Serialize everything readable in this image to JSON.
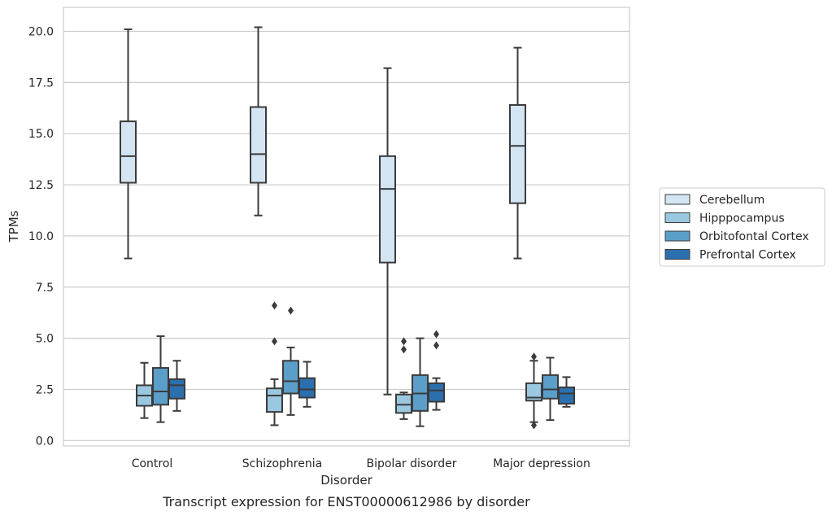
{
  "chart_data": {
    "type": "box",
    "title": "Transcript expression for ENST00000612986 by disorder",
    "xlabel": "Disorder",
    "ylabel": "TPMs",
    "ylim": [
      -0.2,
      21.2
    ],
    "yticks": [
      0.0,
      2.5,
      5.0,
      7.5,
      10.0,
      12.5,
      15.0,
      17.5,
      20.0
    ],
    "ytick_labels": [
      "0.0",
      "2.5",
      "5.0",
      "7.5",
      "10.0",
      "12.5",
      "15.0",
      "17.5",
      "20.0"
    ],
    "grid": "horizontal",
    "legend_position": "right",
    "categories": [
      "Control",
      "Schizophrenia",
      "Bipolar disorder",
      "Major depression"
    ],
    "series": [
      {
        "name": "Cerebellum",
        "color": "#d3e4f3",
        "boxes": [
          {
            "whisker_low": 8.9,
            "q1": 12.6,
            "median": 13.9,
            "q3": 15.6,
            "whisker_high": 20.1,
            "outliers": []
          },
          {
            "whisker_low": 11.0,
            "q1": 12.6,
            "median": 14.0,
            "q3": 16.3,
            "whisker_high": 20.2,
            "outliers": []
          },
          {
            "whisker_low": 2.25,
            "q1": 8.7,
            "median": 12.3,
            "q3": 13.9,
            "whisker_high": 18.2,
            "outliers": []
          },
          {
            "whisker_low": 8.9,
            "q1": 11.6,
            "median": 14.4,
            "q3": 16.4,
            "whisker_high": 19.2,
            "outliers": []
          }
        ]
      },
      {
        "name": "Hipppocampus",
        "color": "#9ac8e0",
        "boxes": [
          {
            "whisker_low": 1.1,
            "q1": 1.7,
            "median": 2.2,
            "q3": 2.7,
            "whisker_high": 3.8,
            "outliers": []
          },
          {
            "whisker_low": 0.75,
            "q1": 1.4,
            "median": 2.2,
            "q3": 2.55,
            "whisker_high": 3.0,
            "outliers": [
              6.6,
              4.85
            ]
          },
          {
            "whisker_low": 1.05,
            "q1": 1.35,
            "median": 1.75,
            "q3": 2.25,
            "whisker_high": 2.35,
            "outliers": [
              4.85,
              4.45
            ]
          },
          {
            "whisker_low": 0.9,
            "q1": 1.95,
            "median": 2.1,
            "q3": 2.8,
            "whisker_high": 3.9,
            "outliers": [
              4.1,
              0.75
            ]
          }
        ]
      },
      {
        "name": "Orbitofontal Cortex",
        "color": "#5a9ec9",
        "boxes": [
          {
            "whisker_low": 0.9,
            "q1": 1.75,
            "median": 2.4,
            "q3": 3.55,
            "whisker_high": 5.1,
            "outliers": []
          },
          {
            "whisker_low": 1.25,
            "q1": 2.3,
            "median": 2.9,
            "q3": 3.9,
            "whisker_high": 4.55,
            "outliers": [
              6.35
            ]
          },
          {
            "whisker_low": 0.7,
            "q1": 1.45,
            "median": 2.3,
            "q3": 3.2,
            "whisker_high": 5.0,
            "outliers": []
          },
          {
            "whisker_low": 1.0,
            "q1": 2.05,
            "median": 2.5,
            "q3": 3.2,
            "whisker_high": 4.05,
            "outliers": []
          }
        ]
      },
      {
        "name": "Prefrontal Cortex",
        "color": "#2c6fae",
        "boxes": [
          {
            "whisker_low": 1.45,
            "q1": 2.05,
            "median": 2.7,
            "q3": 3.0,
            "whisker_high": 3.9,
            "outliers": []
          },
          {
            "whisker_low": 1.65,
            "q1": 2.1,
            "median": 2.5,
            "q3": 3.05,
            "whisker_high": 3.85,
            "outliers": []
          },
          {
            "whisker_low": 1.5,
            "q1": 1.9,
            "median": 2.45,
            "q3": 2.8,
            "whisker_high": 3.05,
            "outliers": [
              5.2,
              4.65
            ]
          },
          {
            "whisker_low": 1.65,
            "q1": 1.8,
            "median": 2.3,
            "q3": 2.6,
            "whisker_high": 3.1,
            "outliers": []
          }
        ]
      }
    ]
  },
  "colors": {
    "box_edge": "#3b3b3b",
    "grid": "#cccccc",
    "frame": "#cccccc",
    "text": "#262626"
  }
}
